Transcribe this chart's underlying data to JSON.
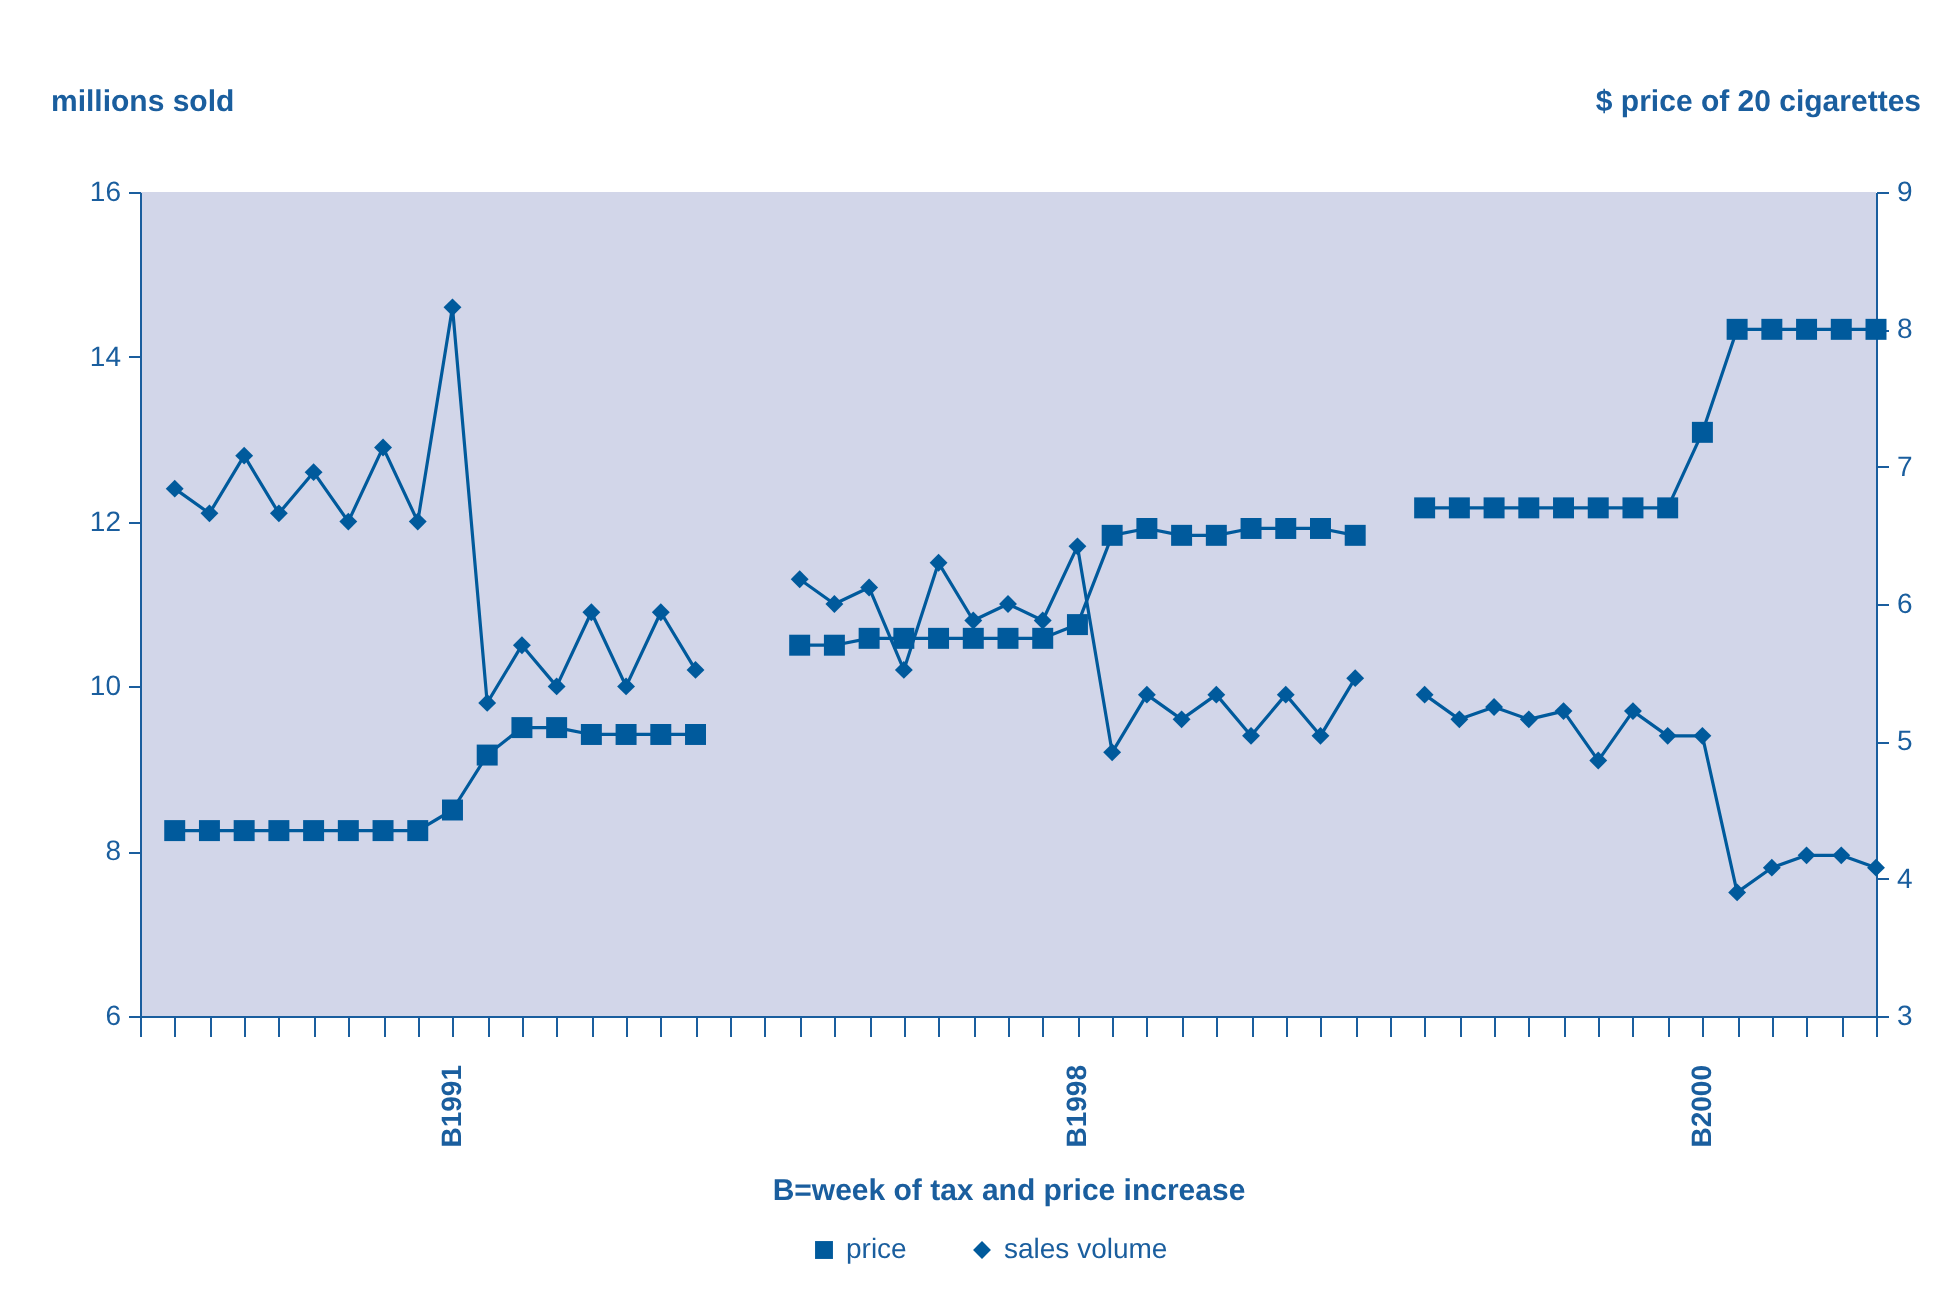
{
  "chart_data": {
    "type": "line",
    "ylabel": "millions sold",
    "y2label": "$ price of 20 cigarettes",
    "xlabel": "B=week of tax and price increase",
    "categories": [
      null,
      null,
      null,
      null,
      null,
      null,
      null,
      null,
      null,
      "B1991",
      null,
      null,
      null,
      null,
      null,
      null,
      null,
      null,
      null,
      null,
      null,
      null,
      null,
      null,
      null,
      null,
      null,
      "B1998",
      null,
      null,
      null,
      null,
      null,
      null,
      null,
      null,
      null,
      null,
      null,
      null,
      null,
      null,
      null,
      null,
      null,
      "B2000",
      null,
      null,
      null,
      null,
      null
    ],
    "series": [
      {
        "name": "price",
        "color": "#005a9c",
        "axis": "y2",
        "marker": "square",
        "values": [
          null,
          4.35,
          4.35,
          4.35,
          4.35,
          4.35,
          4.35,
          4.35,
          4.35,
          4.5,
          4.9,
          5.1,
          5.1,
          5.05,
          5.05,
          5.05,
          5.05,
          null,
          null,
          5.7,
          5.7,
          5.75,
          5.75,
          5.75,
          5.75,
          5.75,
          5.75,
          5.85,
          6.5,
          6.55,
          6.5,
          6.5,
          6.55,
          6.55,
          6.55,
          6.5,
          null,
          6.7,
          6.7,
          6.7,
          6.7,
          6.7,
          6.7,
          6.7,
          6.7,
          7.25,
          8.0,
          8.0,
          8.0,
          8.0,
          8.0
        ]
      },
      {
        "name": "sales volume",
        "color": "#005a9c",
        "axis": "y",
        "marker": "diamond",
        "values": [
          null,
          12.4,
          12.1,
          12.8,
          12.1,
          12.6,
          12.0,
          12.9,
          12.0,
          14.6,
          9.8,
          10.5,
          10.0,
          10.9,
          10.0,
          10.9,
          10.2,
          null,
          null,
          11.3,
          11.0,
          11.2,
          10.2,
          11.5,
          10.8,
          11.0,
          10.8,
          11.7,
          9.2,
          9.9,
          9.6,
          9.9,
          9.4,
          9.9,
          9.4,
          10.1,
          null,
          9.9,
          9.6,
          9.75,
          9.6,
          9.7,
          9.1,
          9.7,
          9.4,
          9.4,
          7.5,
          7.8,
          7.95,
          7.95,
          7.8
        ]
      }
    ],
    "ylim": [
      6,
      16
    ],
    "yticks": [
      6,
      8,
      10,
      12,
      14,
      16
    ],
    "y2lim": [
      3,
      9
    ],
    "y2ticks": [
      3,
      4,
      5,
      6,
      7,
      8,
      9
    ],
    "grid": false,
    "legend": "bottom",
    "line_style": "solid"
  }
}
